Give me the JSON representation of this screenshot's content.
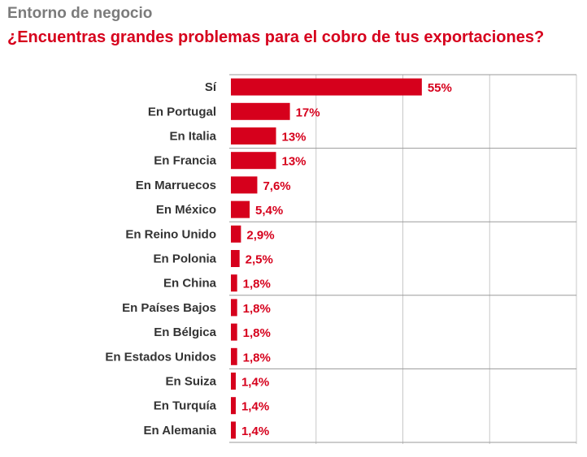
{
  "header": {
    "supertitle": "Entorno de negocio",
    "title": "¿Encuentras grandes problemas para el cobro de tus exportaciones?"
  },
  "colors": {
    "bar": "#d6001c",
    "value_label": "#d6001c",
    "category_label": "#333333",
    "supertitle": "#7b7b7b",
    "grid": "#c8c8c8",
    "row_divider": "#9a9a9a"
  },
  "chart_data": {
    "type": "bar",
    "orientation": "horizontal",
    "title": "¿Encuentras grandes problemas para el cobro de tus exportaciones?",
    "xlabel": "",
    "ylabel": "",
    "xlim": [
      0,
      100
    ],
    "grid": true,
    "categories": [
      "Sí",
      "En Portugal",
      "En Italia",
      "En Francia",
      "En Marruecos",
      "En México",
      "En Reino Unido",
      "En Polonia",
      "En China",
      "En Países Bajos",
      "En Bélgica",
      "En Estados Unidos",
      "En Suiza",
      "En Turquía",
      "En Alemania"
    ],
    "values": [
      55,
      17,
      13,
      13,
      7.6,
      5.4,
      2.9,
      2.5,
      1.8,
      1.8,
      1.8,
      1.8,
      1.4,
      1.4,
      1.4
    ],
    "value_labels": [
      "55%",
      "17%",
      "13%",
      "13%",
      "7,6%",
      "5,4%",
      "2,9%",
      "2,5%",
      "1,8%",
      "1,8%",
      "1,8%",
      "1,8%",
      "1,4%",
      "1,4%",
      "1,4%"
    ]
  }
}
